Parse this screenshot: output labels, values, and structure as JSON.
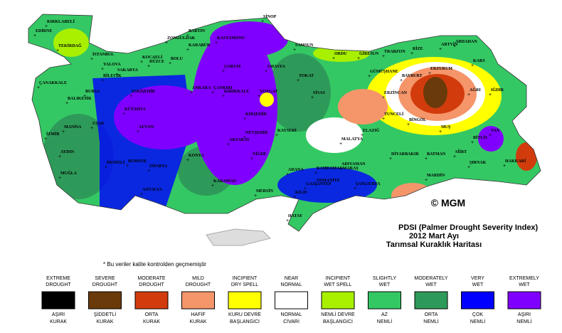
{
  "title_lines": [
    "PDSI (Palmer Drought Severity Index)",
    "2012 Mart Ayı",
    "Tarımsal Kuraklık Haritası"
  ],
  "note": "* Bu veriler kalite kontrolden geçmemiştir",
  "copyright": "© MGM",
  "cities": [
    "KIRKLARELİ",
    "EDİRNE",
    "TEKİRDAĞ",
    "İSTANBUL",
    "KOCAELİ",
    "SAKARYA",
    "DÜZCE",
    "BOLU",
    "ZONGULDAK",
    "BARTIN",
    "KARABÜK",
    "KASTAMONU",
    "SİNOP",
    "SAMSUN",
    "ORDU",
    "GİRESUN",
    "TRABZON",
    "RİZE",
    "ARTVİN",
    "ARDAHAN",
    "KARS",
    "IĞDIR",
    "AĞRI",
    "ERZURUM",
    "BAYBURT",
    "GÜMÜŞHANE",
    "ERZİNCAN",
    "TUNCELİ",
    "BİNGÖL",
    "MUŞ",
    "BİTLİS",
    "VAN",
    "HAKKARİ",
    "SİİRT",
    "BATMAN",
    "DİYARBAKIR",
    "MARDİN",
    "ŞIRNAK",
    "ŞANLIURFA",
    "ADIYAMAN",
    "MALATYA",
    "ELAZIĞ",
    "GAZİANTEP",
    "KİLİS",
    "HATAY",
    "OSMANİYE",
    "ADANA",
    "MERSİN",
    "KAHRAMANMARAŞ",
    "KAYSERİ",
    "NEVŞEHİR",
    "NİĞDE",
    "AKSARAY",
    "KIRŞEHİR",
    "YOZGAT",
    "SİVAS",
    "TOKAT",
    "AMASYA",
    "ÇORUM",
    "ÇANKIRI",
    "KIRIKKALE",
    "ANKARA",
    "ESKİŞEHİR",
    "BİLECİK",
    "BURSA",
    "YALOVA",
    "BALIKESİR",
    "ÇANAKKALE",
    "MANİSA",
    "İZMİR",
    "AYDIN",
    "MUĞLA",
    "DENİZLİ",
    "UŞAK",
    "KÜTAHYA",
    "AFYON",
    "BURDUR",
    "ISPARTA",
    "ANTALYA",
    "KONYA",
    "KARAMAN"
  ],
  "legend": [
    {
      "top": [
        "EXTREME",
        "DROUGHT"
      ],
      "color": "#000000",
      "bottom": [
        "AŞIRI",
        "KURAK"
      ]
    },
    {
      "top": [
        "SEVERE",
        "DROUGHT"
      ],
      "color": "#6b3a0a",
      "bottom": [
        "ŞİDDETLİ",
        "KURAK"
      ]
    },
    {
      "top": [
        "MODERATE",
        "DROUGHT"
      ],
      "color": "#d23c0c",
      "bottom": [
        "ORTA",
        "KURAK"
      ]
    },
    {
      "top": [
        "MILD",
        "DROUGHT"
      ],
      "color": "#f5956a",
      "bottom": [
        "HAFİF",
        "KURAK"
      ]
    },
    {
      "top": [
        "INCIPIENT",
        "DRY SPELL"
      ],
      "color": "#ffff00",
      "bottom": [
        "KURU DEVRE",
        "BAŞLANGICI"
      ]
    },
    {
      "top": [
        "NEAR",
        "NORMAL"
      ],
      "color": "#ffffff",
      "bottom": [
        "NORMAL",
        "CİVARI"
      ]
    },
    {
      "top": [
        "INCIPIENT",
        "WET SPELL"
      ],
      "color": "#a8f000",
      "bottom": [
        "NEMLİ DEVRE",
        "BAŞLANGICI"
      ]
    },
    {
      "top": [
        "SLIGHTLY",
        "WET"
      ],
      "color": "#34c864",
      "bottom": [
        "AZ",
        "NEMLİ"
      ]
    },
    {
      "top": [
        "MODERATELY",
        "WET"
      ],
      "color": "#2e9a5a",
      "bottom": [
        "ORTA",
        "NEMLİ"
      ]
    },
    {
      "top": [
        "VERY",
        "WET"
      ],
      "color": "#0000ff",
      "bottom": [
        "ÇOK",
        "NEMLİ"
      ]
    },
    {
      "top": [
        "EXTREMELY",
        "WET"
      ],
      "color": "#8000ff",
      "bottom": [
        "AŞIRI",
        "NEMLİ"
      ]
    }
  ]
}
